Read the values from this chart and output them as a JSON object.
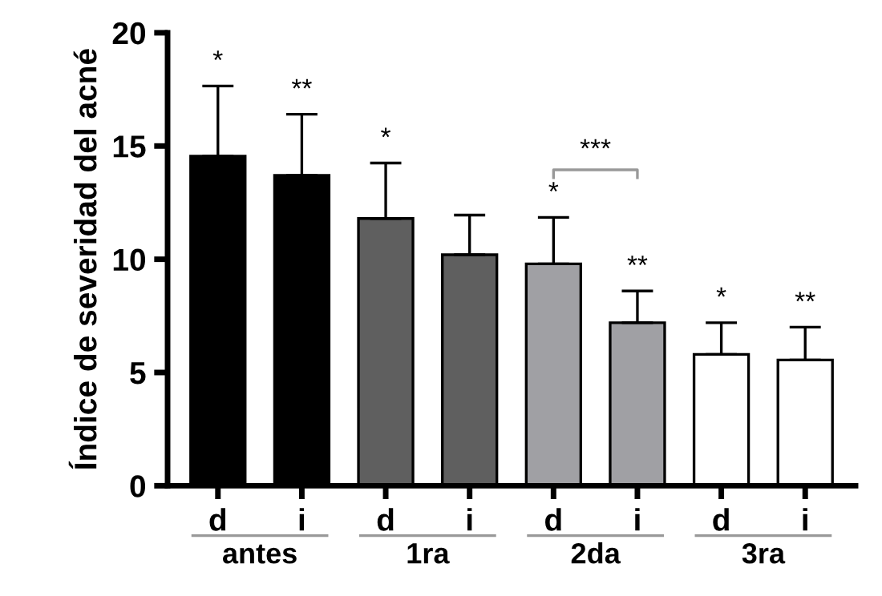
{
  "chart_data": {
    "type": "bar",
    "ylabel": "Índice de severidad del acné",
    "categories": [
      "d",
      "i",
      "d",
      "i",
      "d",
      "i",
      "d",
      "i"
    ],
    "values": [
      14.55,
      13.7,
      11.8,
      10.2,
      9.8,
      7.2,
      5.8,
      5.55
    ],
    "errors": [
      3.1,
      2.7,
      2.45,
      1.75,
      2.05,
      1.4,
      1.4,
      1.45
    ],
    "colors": [
      "#000000",
      "#000000",
      "#5f5f5f",
      "#5f5f5f",
      "#a0a0a4",
      "#a0a0a4",
      "#ffffff",
      "#ffffff"
    ],
    "ylim": [
      0,
      20
    ],
    "yticks": [
      0,
      5,
      10,
      15,
      20
    ],
    "grid": false,
    "legend": false,
    "annotations": [
      "antes",
      "1ra",
      "2da",
      "3ra",
      "*",
      "**",
      "*",
      null,
      "*",
      "**",
      "*",
      "**",
      "***"
    ]
  }
}
